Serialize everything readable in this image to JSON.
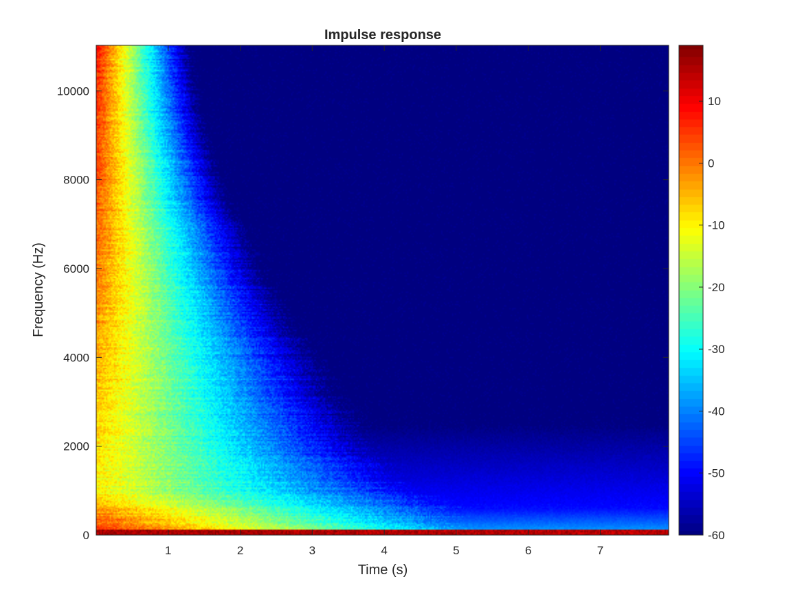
{
  "chart_data": {
    "type": "heatmap",
    "title": "Impulse response",
    "xlabel": "Time (s)",
    "ylabel": "Frequency (Hz)",
    "xlim": [
      0,
      7.95
    ],
    "ylim": [
      0,
      11025
    ],
    "xticks": [
      1,
      2,
      3,
      4,
      5,
      6,
      7
    ],
    "yticks": [
      0,
      2000,
      4000,
      6000,
      8000,
      10000
    ],
    "colorbar": {
      "colormap": "jet",
      "range": [
        -60,
        19
      ],
      "ticks": [
        -60,
        -50,
        -40,
        -30,
        -20,
        -10,
        0,
        10
      ]
    },
    "decay_profile": {
      "frequency_hz": [
        0,
        1000,
        2000,
        3000,
        4000,
        5000,
        6000,
        7000,
        8000,
        9000,
        10000,
        11025
      ],
      "time_to_floor_s": [
        7.95,
        5.5,
        4.2,
        3.6,
        3.2,
        2.8,
        2.4,
        2.1,
        1.8,
        1.6,
        1.45,
        1.35
      ],
      "initial_level_db": [
        8,
        -10,
        -8,
        -6,
        -4,
        -2,
        0,
        2,
        4,
        5,
        6,
        8
      ]
    },
    "floor_level_db": -60,
    "grid": false
  }
}
